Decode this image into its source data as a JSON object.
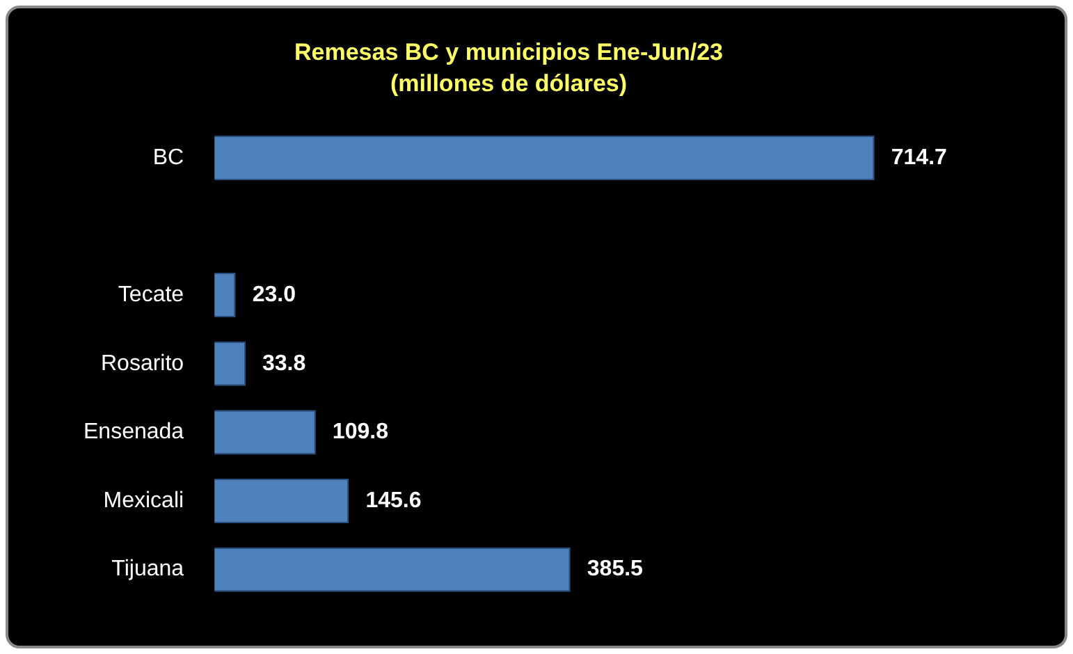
{
  "chart_data": {
    "type": "bar",
    "orientation": "horizontal",
    "title": "Remesas BC y municipios Ene-Jun/23",
    "subtitle": "(millones de dólares)",
    "categories": [
      "BC",
      null,
      "Tecate",
      "Rosarito",
      "Ensenada",
      "Mexicali",
      "Tijuana"
    ],
    "values": [
      714.7,
      null,
      23.0,
      33.8,
      109.8,
      145.6,
      385.5
    ],
    "value_labels": [
      "714.7",
      null,
      "23.0",
      "33.8",
      "109.8",
      "145.6",
      "385.5"
    ],
    "color": "#4f81bd",
    "tick_labels": "y",
    "legend": false
  }
}
